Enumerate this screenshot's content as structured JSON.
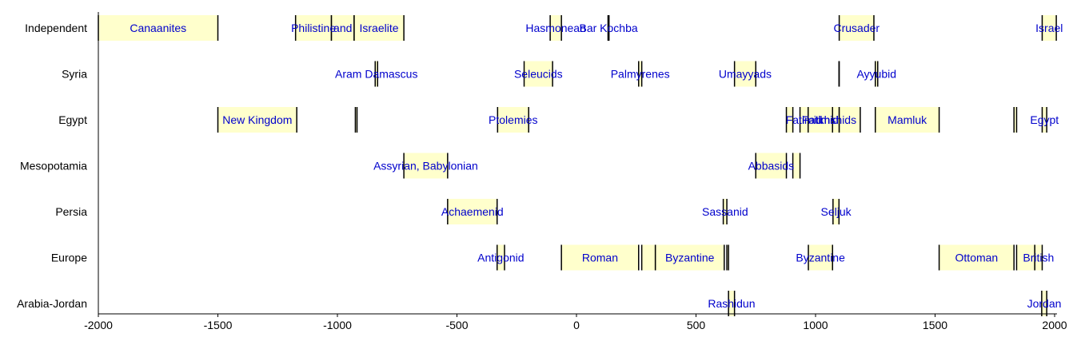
{
  "chart_data": {
    "type": "timeline",
    "xlim": [
      -2000,
      2010
    ],
    "x_ticks": [
      -2000,
      -1500,
      -1000,
      -500,
      0,
      500,
      1000,
      1500,
      2000
    ],
    "grid": false,
    "colors": {
      "fill": "#ffffcc",
      "label": "#0000cc",
      "line": "#000000"
    },
    "rows": [
      {
        "name": "Independent",
        "segments": [
          {
            "start": -2000,
            "end": -1500,
            "label": "Canaanites"
          },
          {
            "start": -1175,
            "end": -1025,
            "label": "Philistine"
          },
          {
            "start": -1025,
            "end": -930,
            "label": "and"
          },
          {
            "start": -930,
            "end": -722,
            "label": "Israelite"
          },
          {
            "start": -110,
            "end": -63,
            "label": "Hasmonean"
          },
          {
            "start": 132,
            "end": 136,
            "label": "Bar Kochba"
          },
          {
            "start": 1099,
            "end": 1244,
            "label": "Crusader"
          },
          {
            "start": 1948,
            "end": 2007,
            "label": "Israel"
          }
        ]
      },
      {
        "name": "Syria",
        "segments": [
          {
            "start": -842,
            "end": -832,
            "label": "Aram Damascus"
          },
          {
            "start": -219,
            "end": -100,
            "label": "Seleucids"
          },
          {
            "start": 260,
            "end": 273,
            "label": "Palmyrenes"
          },
          {
            "start": 661,
            "end": 750,
            "label": "Umayyads"
          },
          {
            "start": 1098,
            "end": 1099,
            "label": ""
          },
          {
            "start": 1250,
            "end": 1260,
            "label": "Ayyubid"
          }
        ]
      },
      {
        "name": "Egypt",
        "segments": [
          {
            "start": -1500,
            "end": -1170,
            "label": "New Kingdom"
          },
          {
            "start": -925,
            "end": -918,
            "label": ""
          },
          {
            "start": -330,
            "end": -200,
            "label": "Ptolemies"
          },
          {
            "start": 878,
            "end": 905,
            "label": ""
          },
          {
            "start": 935,
            "end": 969,
            "label": "Fatimid"
          },
          {
            "start": 969,
            "end": 1071,
            "label": "Fatimid"
          },
          {
            "start": 1071,
            "end": 1099,
            "label": "Ikhshids"
          },
          {
            "start": 1099,
            "end": 1187,
            "label": ""
          },
          {
            "start": 1250,
            "end": 1517,
            "label": "Mamluk"
          },
          {
            "start": 1830,
            "end": 1841,
            "label": ""
          },
          {
            "start": 1948,
            "end": 1967,
            "label": "Egypt"
          }
        ]
      },
      {
        "name": "Mesopotamia",
        "segments": [
          {
            "start": -722,
            "end": -539,
            "label": "Assyrian, Babylonian"
          },
          {
            "start": 750,
            "end": 878,
            "label": "Abbasids"
          },
          {
            "start": 905,
            "end": 935,
            "label": ""
          }
        ]
      },
      {
        "name": "Persia",
        "segments": [
          {
            "start": -539,
            "end": -332,
            "label": "Achaemenid"
          },
          {
            "start": 614,
            "end": 629,
            "label": "Sassanid"
          },
          {
            "start": 1073,
            "end": 1098,
            "label": "Seljuk"
          }
        ]
      },
      {
        "name": "Europe",
        "segments": [
          {
            "start": -332,
            "end": -301,
            "label": "Antigonid"
          },
          {
            "start": -63,
            "end": 260,
            "label": "Roman"
          },
          {
            "start": 273,
            "end": 330,
            "label": ""
          },
          {
            "start": 330,
            "end": 618,
            "label": "Byzantine"
          },
          {
            "start": 629,
            "end": 636,
            "label": ""
          },
          {
            "start": 970,
            "end": 1071,
            "label": "Byzantine"
          },
          {
            "start": 1517,
            "end": 1830,
            "label": "Ottoman"
          },
          {
            "start": 1841,
            "end": 1917,
            "label": ""
          },
          {
            "start": 1917,
            "end": 1948,
            "label": "British"
          }
        ]
      },
      {
        "name": "Arabia-Jordan",
        "segments": [
          {
            "start": 636,
            "end": 661,
            "label": "Rashidun"
          },
          {
            "start": 1946,
            "end": 1967,
            "label": "Jordan"
          }
        ]
      }
    ]
  }
}
